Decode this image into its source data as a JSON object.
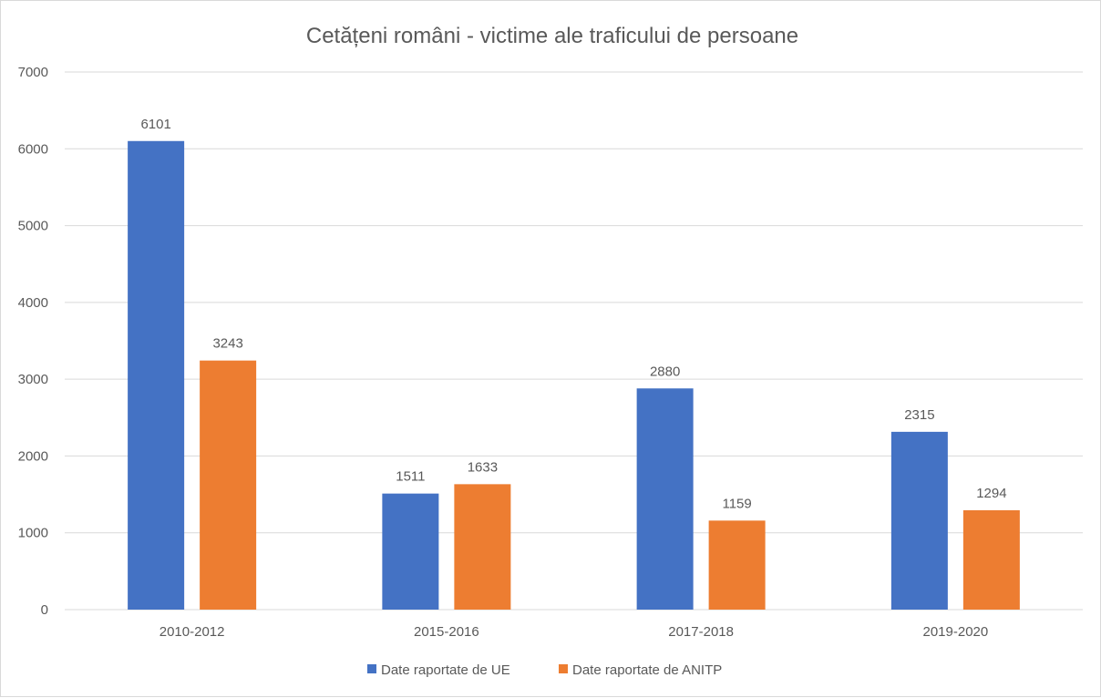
{
  "chart_data": {
    "type": "bar",
    "title": "Cetățeni români - victime ale traficului de persoane",
    "categories": [
      "2010-2012",
      "2015-2016",
      "2017-2018",
      "2019-2020"
    ],
    "series": [
      {
        "name": "Date raportate de UE",
        "color": "#4472c4",
        "values": [
          6101,
          1511,
          2880,
          2315
        ]
      },
      {
        "name": "Date raportate de ANITP",
        "color": "#ed7d31",
        "values": [
          3243,
          1633,
          1159,
          1294
        ]
      }
    ],
    "ylim": [
      0,
      7000
    ],
    "yticks": [
      "0",
      "1000",
      "2000",
      "3000",
      "4000",
      "5000",
      "6000",
      "7000"
    ],
    "grid": true,
    "legend": "bottom",
    "data_labels": true
  }
}
